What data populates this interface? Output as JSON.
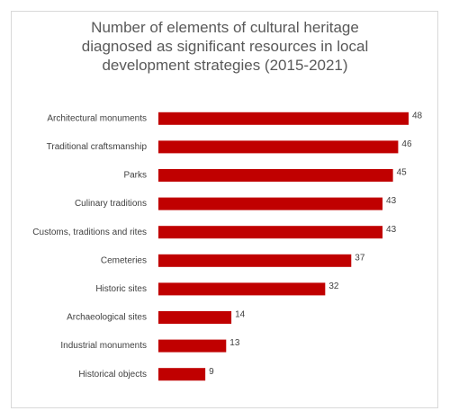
{
  "chart_data": {
    "type": "hbar",
    "title": "Number of elements of cultural heritage diagnosed as significant resources in local development strategies (2015-2021)",
    "categories": [
      "Architectural monuments",
      "Traditional craftsmanship",
      "Parks",
      "Culinary traditions",
      "Customs, traditions and rites",
      "Cemeteries",
      "Historic sites",
      "Archaeological sites",
      "Industrial monuments",
      "Historical objects"
    ],
    "values": [
      48,
      46,
      45,
      43,
      43,
      37,
      32,
      14,
      13,
      9
    ],
    "color": "#c00000"
  }
}
